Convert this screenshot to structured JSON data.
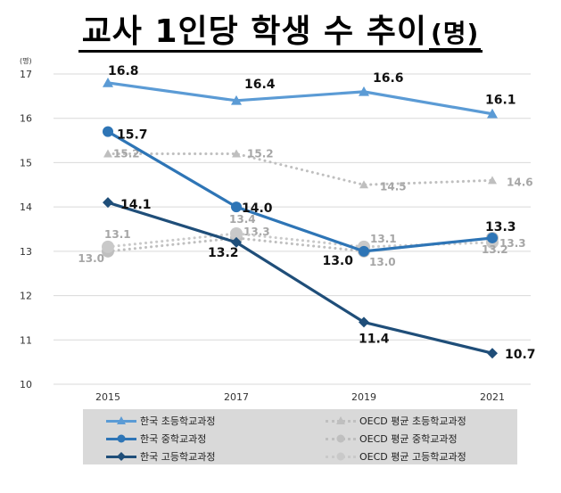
{
  "title": {
    "main": "교사 1인당 학생 수 추이",
    "unit": "(명)"
  },
  "chart_data": {
    "type": "line",
    "title": "교사 1인당 학생 수 추이(명)",
    "ylabel": "(명)",
    "ylim": [
      10,
      17
    ],
    "yticks": [
      "10",
      "11",
      "12",
      "13",
      "14",
      "15",
      "16",
      "17"
    ],
    "categories": [
      "2015",
      "2017",
      "2019",
      "2021"
    ],
    "series": [
      {
        "name": "한국 초등학교과정",
        "color": "#5b9bd5",
        "style": "solid",
        "marker": "triangle",
        "values": [
          16.8,
          16.4,
          16.6,
          16.1
        ],
        "labels": [
          "16.8",
          "16.4",
          "16.6",
          "16.1"
        ]
      },
      {
        "name": "한국 중학교과정",
        "color": "#2e75b6",
        "style": "solid",
        "marker": "circle",
        "values": [
          15.7,
          14.0,
          13.0,
          13.3
        ],
        "labels": [
          "15.7",
          "14.0",
          "13.0",
          "13.3"
        ]
      },
      {
        "name": "한국 고등학교과정",
        "color": "#1f4e79",
        "style": "solid",
        "marker": "diamond",
        "values": [
          14.1,
          13.2,
          11.4,
          10.7
        ],
        "labels": [
          "14.1",
          "13.2",
          "11.4",
          "10.7"
        ]
      },
      {
        "name": "OECD 평균 초등학교과정",
        "color": "#bfbfbf",
        "style": "dotted",
        "marker": "triangle",
        "values": [
          15.2,
          15.2,
          14.5,
          14.6
        ],
        "labels": [
          "15.2",
          "15.2",
          "14.5",
          "14.6"
        ]
      },
      {
        "name": "OECD 평균 중학교과정",
        "color": "#bfbfbf",
        "style": "dotted",
        "marker": "circle",
        "values": [
          13.0,
          13.3,
          13.0,
          13.3
        ],
        "labels": [
          "13.0",
          "13.3",
          "13.0",
          "13.3"
        ]
      },
      {
        "name": "OECD 평균 고등학교과정",
        "color": "#c9c9c9",
        "style": "dotted",
        "marker": "circle",
        "values": [
          13.1,
          13.4,
          13.1,
          13.2
        ],
        "labels": [
          "13.1",
          "13.4",
          "13.1",
          "13.2"
        ]
      }
    ]
  }
}
